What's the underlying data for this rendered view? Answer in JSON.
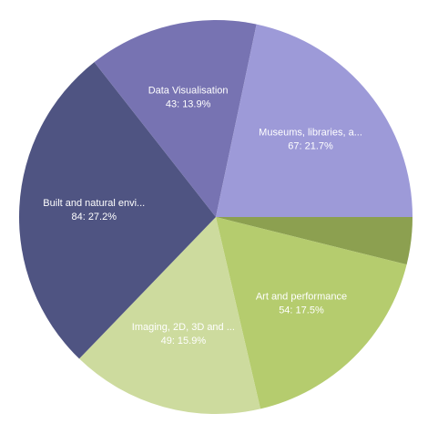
{
  "chart_data": {
    "type": "pie",
    "start_angle_deg": 0,
    "direction": "clockwise",
    "total": 309,
    "slices": [
      {
        "category": "",
        "value": 12,
        "display_name": "",
        "value_text": "",
        "color": "#8ca050"
      },
      {
        "category": "Art and performance",
        "value": 54,
        "display_name": "Art and performance",
        "value_text": "54:  17.5%",
        "color": "#b5cc6e"
      },
      {
        "category": "Imaging, 2D, 3D and ...",
        "value": 49,
        "display_name": "Imaging, 2D, 3D and ...",
        "value_text": "49:  15.9%",
        "color": "#cddb9e"
      },
      {
        "category": "Built and natural envi...",
        "value": 84,
        "display_name": "Built and natural envi...",
        "value_text": "84:  27.2%",
        "color": "#4f5482"
      },
      {
        "category": "Data Visualisation",
        "value": 43,
        "display_name": "Data Visualisation",
        "value_text": "43:  13.9%",
        "color": "#7773b2"
      },
      {
        "category": "Museums, libraries, a...",
        "value": 67,
        "display_name": "Museums, libraries, a...",
        "value_text": "67:  21.7%",
        "color": "#9d9ad8"
      }
    ]
  }
}
